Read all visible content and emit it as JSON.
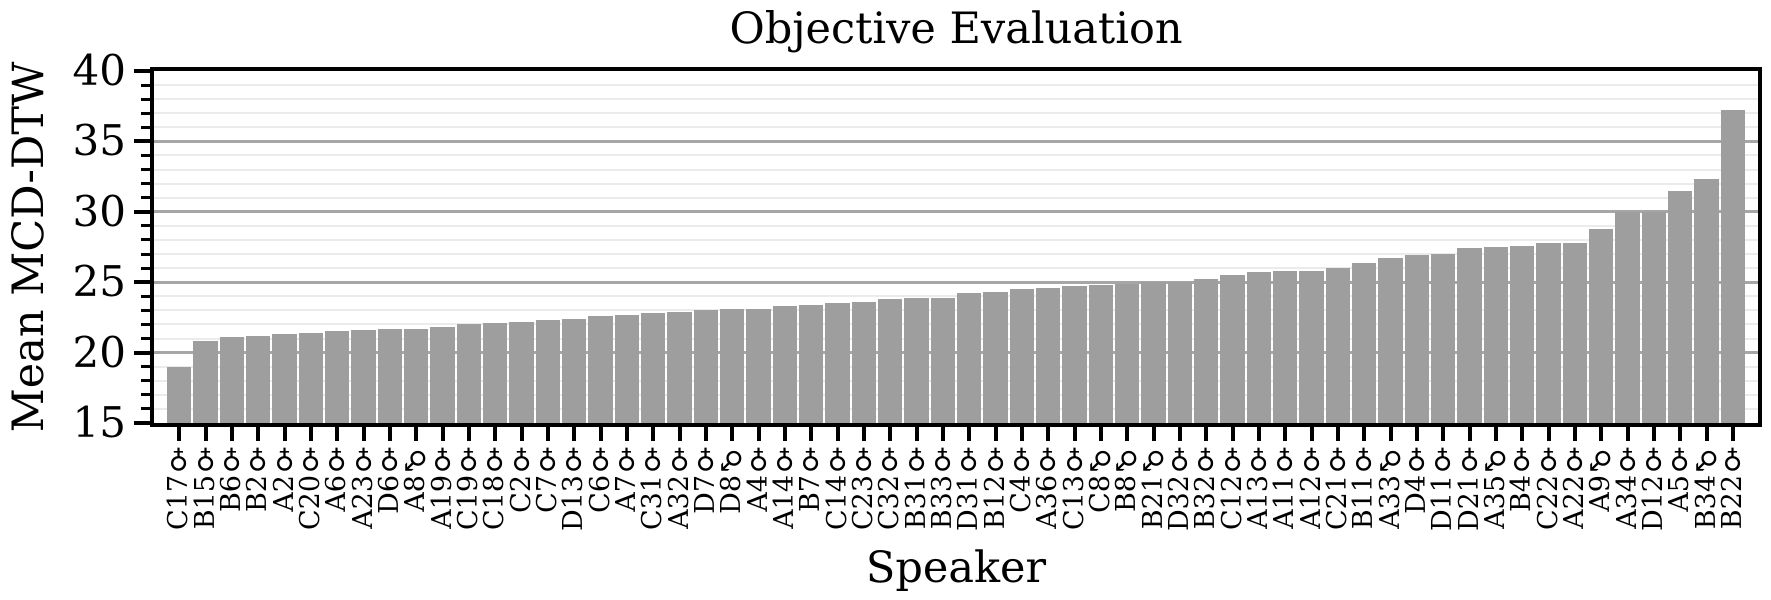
{
  "chart_data": {
    "type": "bar",
    "title": "Objective Evaluation",
    "xlabel": "Speaker",
    "ylabel": "Mean MCD-DTW",
    "ylim": [
      15,
      40
    ],
    "yticks_major": [
      15,
      20,
      25,
      30,
      35,
      40
    ],
    "ytick_minor_step": 1,
    "grid": "horizontal minor+major, behind bars",
    "legend": "none",
    "categories": [
      "C17♀",
      "B15♀",
      "B6♀",
      "B2♀",
      "A2♀",
      "C20♀",
      "A6♀",
      "A23♀",
      "D6♀",
      "A8♂",
      "A19♀",
      "C19♀",
      "C18♀",
      "C2♀",
      "C7♀",
      "D13♀",
      "C6♀",
      "A7♀",
      "C31♀",
      "A32♀",
      "D7♀",
      "D8♂",
      "A4♀",
      "A14♀",
      "B7♀",
      "C14♀",
      "C23♀",
      "C32♀",
      "B31♀",
      "B33♀",
      "D31♀",
      "B12♀",
      "C4♀",
      "A36♀",
      "C13♀",
      "C8♂",
      "B8♂",
      "B21♂",
      "D32♀",
      "B32♀",
      "C12♀",
      "A13♀",
      "A11♀",
      "A12♀",
      "C21♀",
      "B11♀",
      "A33♂",
      "D4♀",
      "D11♀",
      "D21♀",
      "A35♂",
      "B4♀",
      "C22♀",
      "A22♀",
      "A9♂",
      "A34♀",
      "D12♀",
      "A5♀",
      "B34♂",
      "B22♀"
    ],
    "values": [
      19.0,
      20.8,
      21.1,
      21.2,
      21.3,
      21.4,
      21.5,
      21.6,
      21.7,
      21.7,
      21.8,
      22.0,
      22.1,
      22.2,
      22.3,
      22.4,
      22.6,
      22.7,
      22.8,
      22.9,
      23.0,
      23.1,
      23.1,
      23.3,
      23.4,
      23.5,
      23.6,
      23.8,
      23.9,
      23.9,
      24.2,
      24.3,
      24.5,
      24.6,
      24.7,
      24.8,
      24.9,
      25.0,
      25.0,
      25.2,
      25.5,
      25.7,
      25.8,
      25.8,
      26.0,
      26.4,
      26.7,
      26.9,
      27.0,
      27.4,
      27.5,
      27.6,
      27.8,
      27.8,
      28.8,
      30.0,
      30.0,
      31.5,
      32.3,
      37.2
    ]
  },
  "colors": {
    "bar": "#9e9e9e",
    "grid_minor": "#ebebeb",
    "grid_major": "#a6a6a6",
    "axis": "#000000",
    "background": "#ffffff"
  }
}
